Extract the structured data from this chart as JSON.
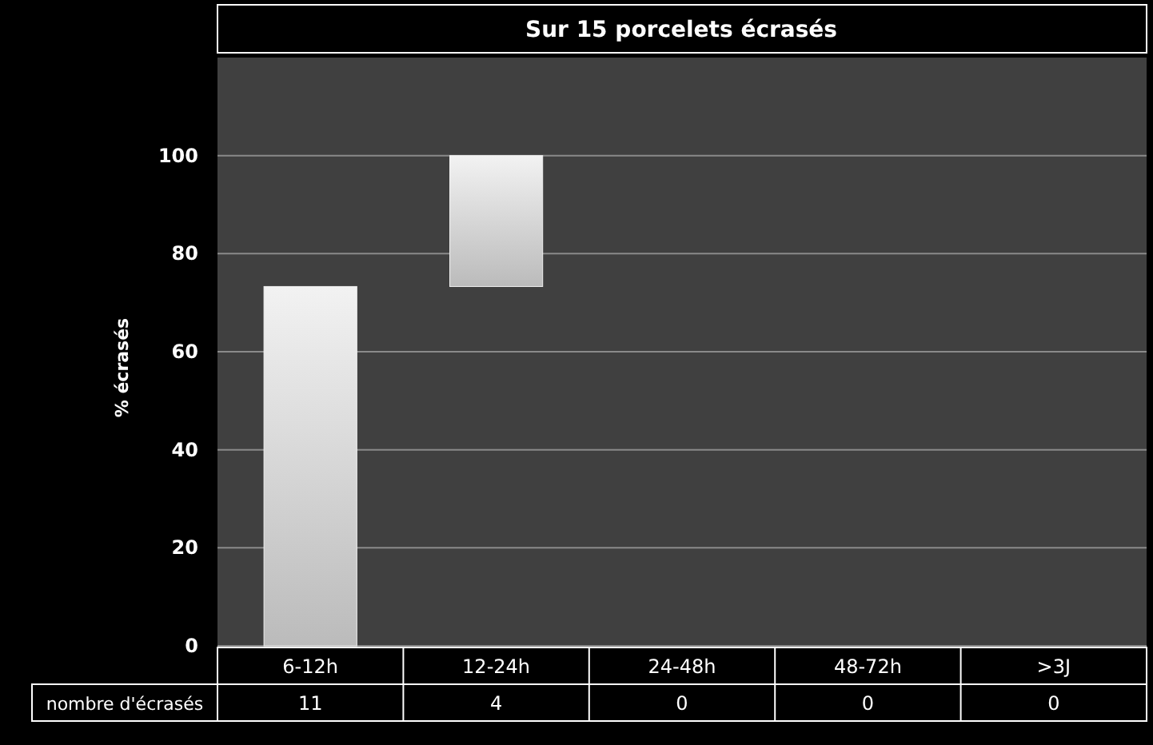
{
  "chart_data": [
    {
      "type": "bar",
      "title": "Sur 15 porcelets écrasés",
      "ylabel": "% écrasés",
      "categories": [
        "6-12h",
        "12-24h",
        "24-48h",
        "48-72h",
        ">3J"
      ],
      "values": [
        73.3,
        26.7,
        0,
        0,
        0
      ],
      "base": [
        0,
        73.3,
        null,
        null,
        null
      ],
      "color": "#f2f2f2",
      "ylim": [
        0,
        120
      ],
      "yticks": [
        0,
        20,
        40,
        60,
        80,
        100
      ],
      "grid": "y"
    },
    {
      "type": "other",
      "title": "nombre d'écrasés",
      "values": [
        11,
        4,
        0,
        0,
        0
      ],
      "data_labels": true
    }
  ]
}
